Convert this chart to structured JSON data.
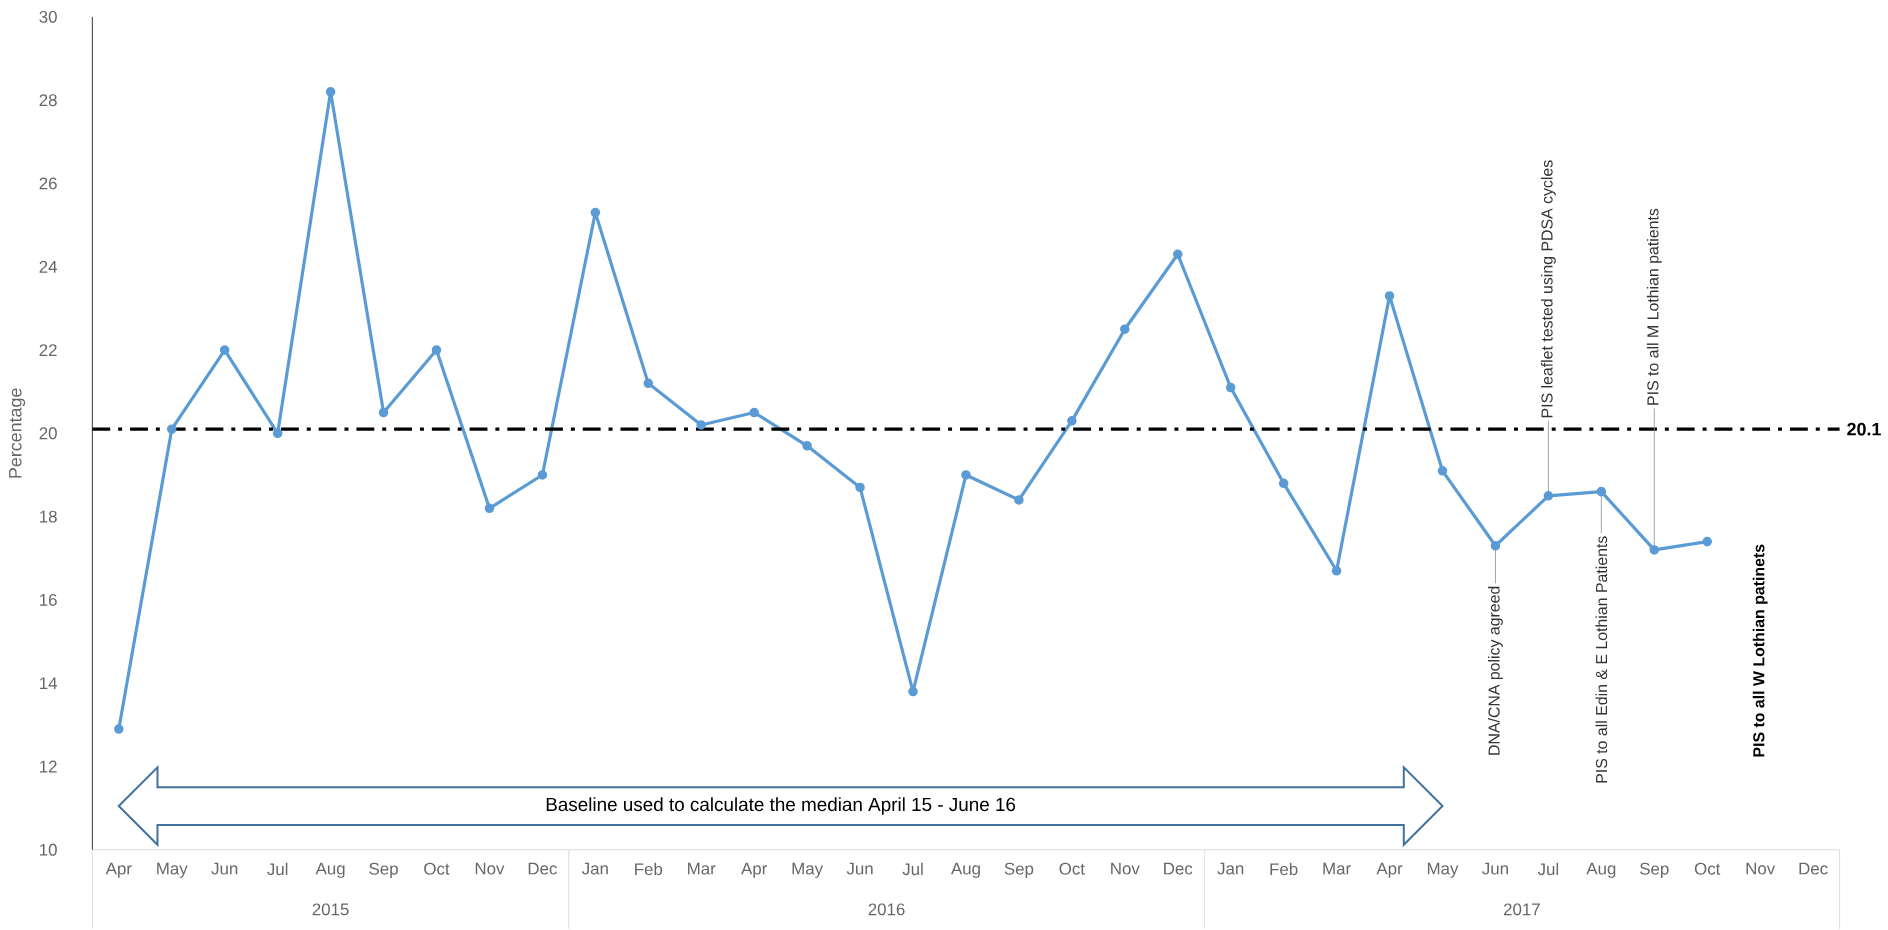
{
  "chart_data": {
    "type": "line",
    "ylabel": "Percentage",
    "categories": [
      "Apr",
      "May",
      "Jun",
      "Jul",
      "Aug",
      "Sep",
      "Oct",
      "Nov",
      "Dec",
      "Jan",
      "Feb",
      "Mar",
      "Apr",
      "May",
      "Jun",
      "Jul",
      "Aug",
      "Sep",
      "Oct",
      "Nov",
      "Dec",
      "Jan",
      "Feb",
      "Mar",
      "Apr",
      "May",
      "Jun",
      "Jul",
      "Aug",
      "Sep",
      "Oct",
      "Nov",
      "Dec"
    ],
    "series": [
      {
        "color": "#5b9bd5",
        "values": [
          12.9,
          20.1,
          22.0,
          20.0,
          28.2,
          20.5,
          22.0,
          18.2,
          19.0,
          25.3,
          21.2,
          20.2,
          20.5,
          19.7,
          18.7,
          13.8,
          19.0,
          18.4,
          20.3,
          22.5,
          24.3,
          21.1,
          18.8,
          16.7,
          23.3,
          19.1,
          17.3,
          18.5,
          18.6,
          17.2,
          17.4,
          null,
          null
        ]
      }
    ],
    "ylim": [
      10,
      30
    ],
    "yticks": [
      10,
      12,
      14,
      16,
      18,
      20,
      22,
      24,
      26,
      28,
      30
    ],
    "marker": "circle",
    "line_style": "solid",
    "ref_lines": [
      {
        "axis": "y",
        "value": 20.1,
        "label": "20.1",
        "color": "#000000",
        "line_style": "dashdot"
      }
    ],
    "annotations": [
      "2015",
      "2016",
      "2017",
      "Baseline used to calculate the median April 15 - June 16",
      {
        "text": "DNA/CNA policy agreed",
        "y": 17.3
      },
      {
        "text": "PIS leaflet tested using PDSA cycles",
        "y": 18.5
      },
      {
        "text": "PIS to all Edin & E Lothian Patients",
        "y": 18.6
      },
      {
        "text": "PIS to all M Lothian patients",
        "y": 17.2
      },
      "PIS to all W Lothian patinets"
    ]
  }
}
